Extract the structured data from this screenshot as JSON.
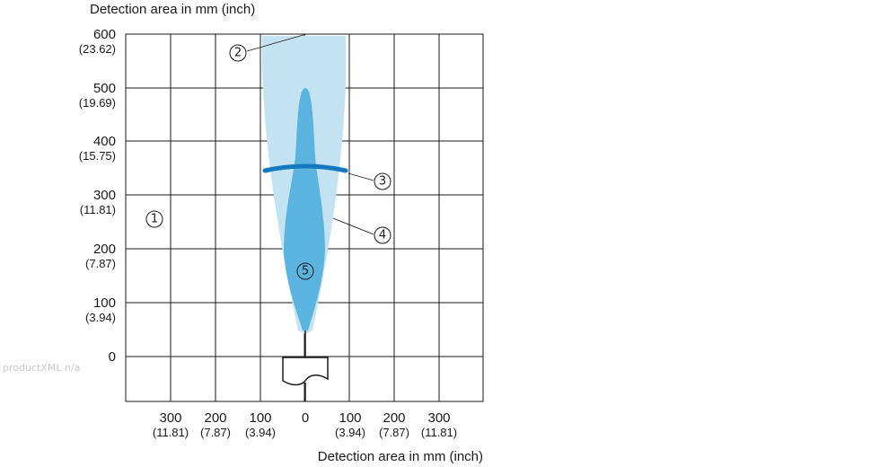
{
  "diagram": {
    "y_axis_title": "Detection area in mm (inch)",
    "x_axis_title": "Detection area in mm (inch)",
    "y_ticks": [
      {
        "value": "600",
        "inch": "(23.62)"
      },
      {
        "value": "500",
        "inch": "(19.69)"
      },
      {
        "value": "400",
        "inch": "(15.75)"
      },
      {
        "value": "300",
        "inch": "(11.81)"
      },
      {
        "value": "200",
        "inch": "(7.87)"
      },
      {
        "value": "100",
        "inch": "(3.94)"
      },
      {
        "value": "0",
        "inch": ""
      }
    ],
    "x_ticks": [
      {
        "value": "300",
        "inch": "(11.81)"
      },
      {
        "value": "200",
        "inch": "(7.87)"
      },
      {
        "value": "100",
        "inch": "(3.94)"
      },
      {
        "value": "0",
        "inch": ""
      },
      {
        "value": "100",
        "inch": "(3.94)"
      },
      {
        "value": "200",
        "inch": "(7.87)"
      },
      {
        "value": "300",
        "inch": "(11.81)"
      }
    ],
    "callouts": [
      "1",
      "2",
      "3",
      "4",
      "5"
    ],
    "watermark": "productXML n/a",
    "colors": {
      "grid": "#1a1a1a",
      "outer_lobe": "#c3e2f2",
      "inner_lobe": "#5bb4df",
      "ring": "#1577bd"
    }
  }
}
